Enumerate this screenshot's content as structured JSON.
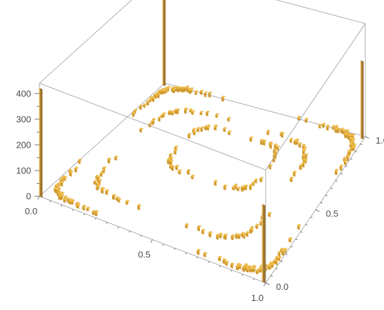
{
  "chart_data": {
    "type": "histogram3d",
    "title": "",
    "xlabel": "",
    "ylabel": "",
    "zlabel": "",
    "x_range": [
      0,
      1
    ],
    "y_range": [
      0,
      1
    ],
    "z_range": [
      0,
      440
    ],
    "x_ticks": [
      "0.0",
      "0.5",
      "1.0"
    ],
    "y_ticks": [
      "0.0",
      "0.5",
      "1.0"
    ],
    "z_ticks": [
      "0",
      "100",
      "200",
      "300",
      "400"
    ],
    "bar_color": "#f0c050",
    "bar_edge_color": "#7a5410",
    "corner_spikes": [
      {
        "x": 0.0,
        "y": 1.0,
        "z": 410
      },
      {
        "x": 1.0,
        "y": 1.0,
        "z": 300
      },
      {
        "x": 0.0,
        "y": 0.0,
        "z": 420
      },
      {
        "x": 1.0,
        "y": 0.0,
        "z": 300
      }
    ],
    "rings": [
      {
        "name": "border",
        "center": [
          0.5,
          0.5
        ],
        "half_x": 0.485,
        "half_y": 0.485,
        "round": 0.1,
        "n": 170,
        "z": 4
      },
      {
        "name": "outer-ring",
        "center": [
          0.47,
          0.5
        ],
        "half_x": 0.36,
        "half_y": 0.36,
        "round": 0.6,
        "n": 80,
        "z": 4
      },
      {
        "name": "inner-ring",
        "center": [
          0.5,
          0.62
        ],
        "half_x": 0.2,
        "half_y": 0.17,
        "round": 0.7,
        "n": 50,
        "z": 4
      }
    ]
  }
}
